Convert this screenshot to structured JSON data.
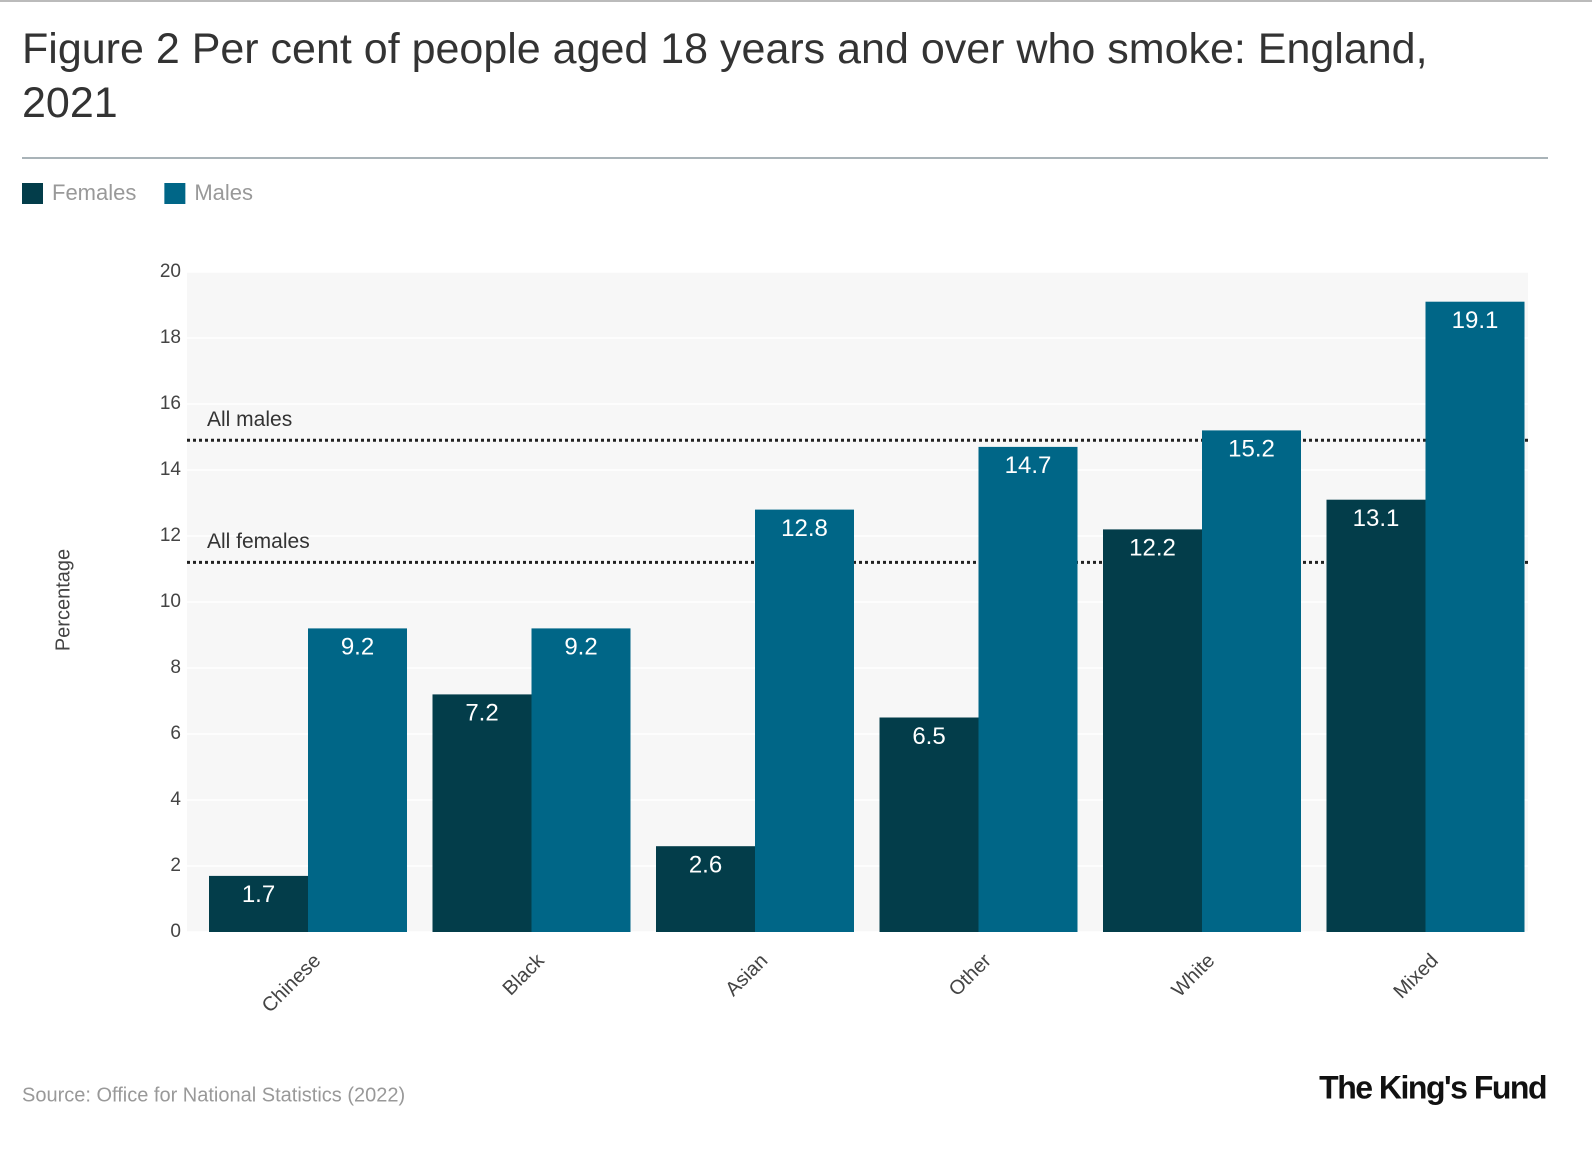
{
  "chart_data": {
    "type": "bar",
    "title": "Figure 2 Per cent of people aged 18 years and over who smoke: England, 2021",
    "ylabel": "Percentage",
    "categories": [
      "Chinese",
      "Black",
      "Asian",
      "Other",
      "White",
      "Mixed"
    ],
    "series": [
      {
        "name": "Females",
        "color": "#033d4a",
        "values": [
          1.7,
          7.2,
          2.6,
          6.5,
          12.2,
          13.1
        ]
      },
      {
        "name": "Males",
        "color": "#006687",
        "values": [
          9.2,
          9.2,
          12.8,
          14.7,
          15.2,
          19.1
        ]
      }
    ],
    "reference_lines": [
      {
        "label": "All males",
        "value": 14.9
      },
      {
        "label": "All females",
        "value": 11.2
      }
    ],
    "ylim": [
      0,
      20
    ],
    "yticks": [
      0,
      2,
      4,
      6,
      8,
      10,
      12,
      14,
      16,
      18,
      20
    ],
    "grid": true,
    "source": "Source: Office for National Statistics (2022)",
    "logo": "The King's Fund"
  }
}
